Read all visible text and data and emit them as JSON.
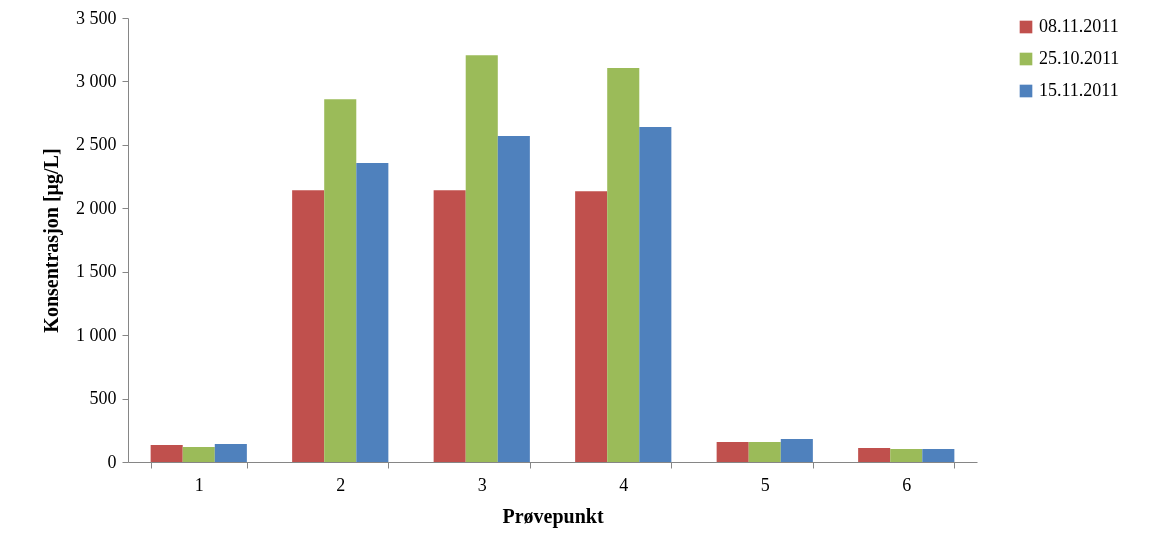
{
  "chart_data": {
    "type": "bar",
    "xlabel": "Prøvepunkt",
    "ylabel": "Konsentrasjon [µg/L]",
    "categories": [
      "1",
      "2",
      "3",
      "4",
      "5",
      "6"
    ],
    "series": [
      {
        "name": "08.11.2011",
        "color": "#c0504d",
        "values": [
          134,
          2143,
          2143,
          2135,
          158,
          110
        ]
      },
      {
        "name": "25.10.2011",
        "color": "#9bbb59",
        "values": [
          118,
          2860,
          3207,
          3105,
          158,
          102
        ]
      },
      {
        "name": "15.11.2011",
        "color": "#4f81bd",
        "values": [
          142,
          2356,
          2569,
          2640,
          181,
          102
        ]
      }
    ],
    "ylim": [
      0,
      3500
    ],
    "yticks": [
      0,
      {
        "value": 500,
        "label": "500"
      },
      {
        "value": 1000,
        "label": "1 000"
      },
      {
        "value": 1500,
        "label": "1 500"
      },
      {
        "value": 2000,
        "label": "2 000"
      },
      {
        "value": 2500,
        "label": "2 500"
      },
      {
        "value": 3000,
        "label": "3 000"
      },
      {
        "value": 3500,
        "label": "3 500"
      }
    ],
    "grid": false,
    "legend": "right"
  }
}
